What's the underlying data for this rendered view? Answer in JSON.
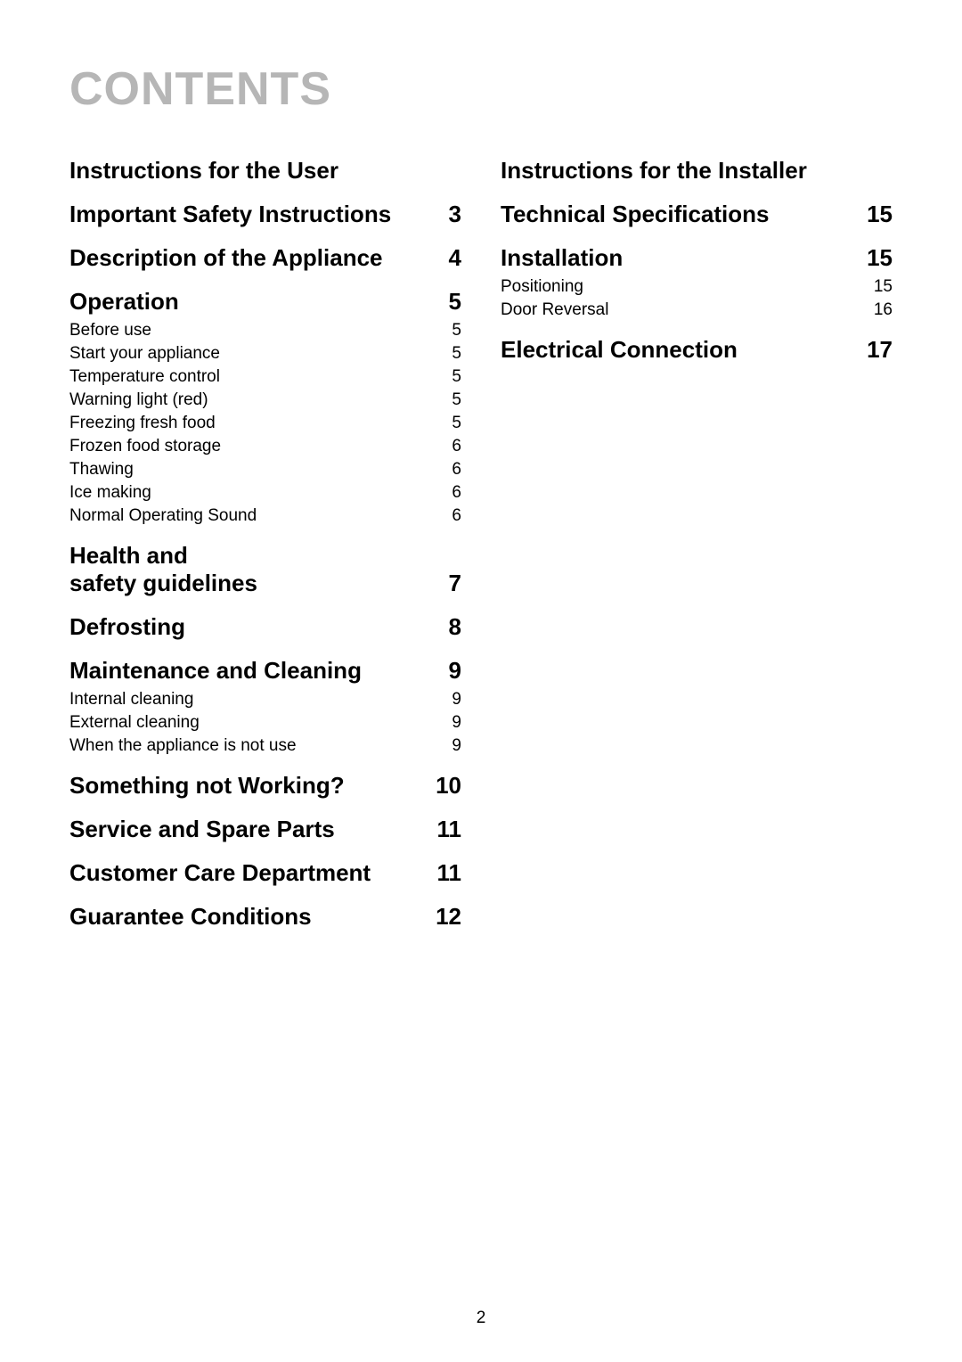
{
  "title": "CONTENTS",
  "colors": {
    "title": "#b6b6b6",
    "text": "#000000",
    "background": "#ffffff"
  },
  "typography": {
    "title_fontsize": 52,
    "section_fontsize": 26,
    "sub_fontsize": 19,
    "font_family": "Arial"
  },
  "footer_page_number": "2",
  "left_column": {
    "header": "Instructions for the User",
    "sections": [
      {
        "label": "Important Safety Instructions",
        "page": "3",
        "subs": []
      },
      {
        "label": "Description of the Appliance",
        "page": "4",
        "subs": []
      },
      {
        "label": "Operation",
        "page": "5",
        "subs": [
          {
            "label": "Before use",
            "page": "5"
          },
          {
            "label": "Start your appliance",
            "page": "5"
          },
          {
            "label": "Temperature control",
            "page": "5"
          },
          {
            "label": "Warning light (red)",
            "page": "5"
          },
          {
            "label": "Freezing fresh food",
            "page": "5"
          },
          {
            "label": "Frozen food storage",
            "page": "6"
          },
          {
            "label": "Thawing",
            "page": "6"
          },
          {
            "label": "Ice making",
            "page": "6"
          },
          {
            "label": "Normal Operating Sound",
            "page": "6"
          }
        ]
      },
      {
        "label_lines": [
          "Health and",
          "safety guidelines"
        ],
        "page": "7",
        "subs": []
      },
      {
        "label": "Defrosting",
        "page": "8",
        "subs": []
      },
      {
        "label": "Maintenance and Cleaning",
        "page": "9",
        "subs": [
          {
            "label": "Internal cleaning",
            "page": "9"
          },
          {
            "label": "External cleaning",
            "page": "9"
          },
          {
            "label": "When the appliance is not use",
            "page": "9"
          }
        ]
      },
      {
        "label": "Something not Working?",
        "page": "10",
        "subs": []
      },
      {
        "label": "Service and Spare Parts",
        "page": "11",
        "subs": []
      },
      {
        "label": "Customer Care Department",
        "page": "11",
        "subs": []
      },
      {
        "label": "Guarantee Conditions",
        "page": "12",
        "subs": []
      }
    ]
  },
  "right_column": {
    "header": "Instructions for the Installer",
    "sections": [
      {
        "label": "Technical Specifications",
        "page": "15",
        "subs": []
      },
      {
        "label": "Installation",
        "page": "15",
        "subs": [
          {
            "label": "Positioning",
            "page": "15"
          },
          {
            "label": "Door Reversal",
            "page": "16"
          }
        ]
      },
      {
        "label": "Electrical Connection",
        "page": "17",
        "subs": []
      }
    ]
  }
}
